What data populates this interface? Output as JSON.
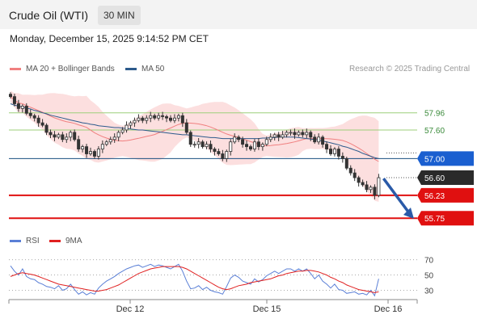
{
  "header": {
    "title": "Crude Oil (WTI)",
    "timeframe": "30 MIN"
  },
  "timestamp": "Monday, December 15, 2025 9:14:52 PM CET",
  "legend": {
    "ma20": {
      "label": "MA 20 + Bollinger Bands",
      "color": "#f08080"
    },
    "ma50": {
      "label": "MA 50",
      "color": "#2c5a8c"
    }
  },
  "research": "Research © 2025 Trading Central",
  "rsi_legend": {
    "rsi": {
      "label": "RSI",
      "color": "#5a7fd6"
    },
    "ma9": {
      "label": "9MA",
      "color": "#e02020"
    }
  },
  "levels": [
    {
      "value": "57.96",
      "kind": "plain",
      "color": "#3a8a3a",
      "line": "#9ccf7a"
    },
    {
      "value": "57.60",
      "kind": "plain",
      "color": "#3a8a3a",
      "line": "#9ccf7a"
    },
    {
      "value": "57.00",
      "kind": "badge",
      "color": "#1a5fd0",
      "line": "#1a4f80"
    },
    {
      "value": "56.60",
      "kind": "badge",
      "color": "#2a2a2a",
      "line": ""
    },
    {
      "value": "56.23",
      "kind": "badge",
      "color": "#e01010",
      "line": "#e01010"
    },
    {
      "value": "55.75",
      "kind": "badge",
      "color": "#e01010",
      "line": "#e01010"
    }
  ],
  "rsi_levels": [
    "70",
    "50",
    "30"
  ],
  "x_labels": [
    "Dec 12",
    "Dec 15",
    "Dec 16"
  ],
  "chart_data": {
    "type": "candlestick",
    "price_range": [
      55.5,
      58.7
    ],
    "rsi_range": [
      20,
      78
    ],
    "closes": [
      58.3,
      58.15,
      58.05,
      58.1,
      57.95,
      57.9,
      57.85,
      57.75,
      57.7,
      57.55,
      57.5,
      57.45,
      57.5,
      57.4,
      57.45,
      57.55,
      57.4,
      57.2,
      57.25,
      57.1,
      57.15,
      57.05,
      57.2,
      57.3,
      57.35,
      57.4,
      57.45,
      57.55,
      57.6,
      57.7,
      57.75,
      57.8,
      57.85,
      57.8,
      57.85,
      57.9,
      57.85,
      57.9,
      57.88,
      57.85,
      57.8,
      57.85,
      57.9,
      57.75,
      57.55,
      57.3,
      57.3,
      57.35,
      57.25,
      57.3,
      57.2,
      57.15,
      57.1,
      57.0,
      57.15,
      57.35,
      57.45,
      57.4,
      57.3,
      57.25,
      57.2,
      57.35,
      57.25,
      57.3,
      57.4,
      57.45,
      57.5,
      57.45,
      57.5,
      57.55,
      57.55,
      57.5,
      57.55,
      57.5,
      57.55,
      57.45,
      57.35,
      57.45,
      57.3,
      57.2,
      57.1,
      57.2,
      57.05,
      57.0,
      56.8,
      56.7,
      56.6,
      56.5,
      56.45,
      56.35,
      56.4,
      56.23,
      56.6
    ],
    "ma50": [
      58.15,
      58.12,
      58.1,
      58.08,
      58.06,
      58.04,
      58.01,
      57.99,
      57.96,
      57.94,
      57.91,
      57.89,
      57.87,
      57.85,
      57.83,
      57.81,
      57.79,
      57.77,
      57.75,
      57.74,
      57.72,
      57.71,
      57.69,
      57.68,
      57.67,
      57.66,
      57.65,
      57.65,
      57.64,
      57.63,
      57.62,
      57.61,
      57.6,
      57.6,
      57.59,
      57.58,
      57.57,
      57.56,
      57.55,
      57.54,
      57.53,
      57.52,
      57.51,
      57.5,
      57.5,
      57.49,
      57.48,
      57.47,
      57.46,
      57.45,
      57.44,
      57.44,
      57.43,
      57.42,
      57.42,
      57.42,
      57.42,
      57.42,
      57.42,
      57.42,
      57.42,
      57.42,
      57.42,
      57.43,
      57.43,
      57.44,
      57.44,
      57.45,
      57.45,
      57.45,
      57.45,
      57.45,
      57.44,
      57.43,
      57.42,
      57.41,
      57.4,
      57.39,
      57.37,
      57.35,
      57.33,
      57.31,
      57.29,
      57.26,
      57.24,
      57.21,
      57.18,
      57.15,
      57.11,
      57.08,
      57.05,
      57.02,
      57.0
    ],
    "rsi": [
      62,
      55,
      50,
      58,
      48,
      45,
      44,
      40,
      38,
      35,
      34,
      32,
      36,
      30,
      32,
      38,
      31,
      25,
      28,
      24,
      27,
      25,
      33,
      38,
      42,
      45,
      48,
      52,
      55,
      58,
      60,
      62,
      63,
      60,
      62,
      64,
      61,
      63,
      62,
      60,
      58,
      61,
      64,
      55,
      42,
      32,
      33,
      36,
      31,
      34,
      30,
      28,
      27,
      25,
      35,
      46,
      50,
      47,
      42,
      40,
      38,
      45,
      41,
      44,
      49,
      52,
      55,
      52,
      55,
      58,
      58,
      55,
      58,
      55,
      58,
      52,
      45,
      50,
      42,
      38,
      33,
      38,
      31,
      30,
      26,
      27,
      28,
      25,
      26,
      24,
      30,
      23,
      45
    ],
    "rsi_ma9": [
      48,
      50,
      52,
      53,
      52,
      51,
      50,
      48,
      46,
      44,
      42,
      40,
      38,
      37,
      36,
      35,
      34,
      33,
      32,
      31,
      30,
      29,
      29,
      30,
      31,
      33,
      35,
      37,
      40,
      43,
      46,
      49,
      52,
      54,
      56,
      58,
      59,
      60,
      61,
      61,
      61,
      61,
      61,
      60,
      58,
      55,
      52,
      49,
      46,
      43,
      40,
      37,
      34,
      32,
      31,
      32,
      34,
      36,
      37,
      38,
      40,
      41,
      42,
      43,
      44,
      45,
      47,
      49,
      50,
      52,
      53,
      54,
      55,
      55,
      56,
      56,
      55,
      54,
      52,
      50,
      47,
      45,
      42,
      40,
      37,
      35,
      33,
      31,
      30,
      29,
      28,
      27,
      28
    ]
  }
}
